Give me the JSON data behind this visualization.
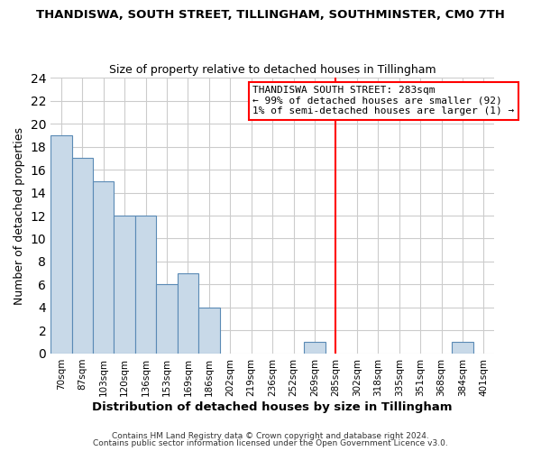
{
  "title": "THANDISWA, SOUTH STREET, TILLINGHAM, SOUTHMINSTER, CM0 7TH",
  "subtitle": "Size of property relative to detached houses in Tillingham",
  "xlabel": "Distribution of detached houses by size in Tillingham",
  "ylabel": "Number of detached properties",
  "bin_labels": [
    "70sqm",
    "87sqm",
    "103sqm",
    "120sqm",
    "136sqm",
    "153sqm",
    "169sqm",
    "186sqm",
    "202sqm",
    "219sqm",
    "236sqm",
    "252sqm",
    "269sqm",
    "285sqm",
    "302sqm",
    "318sqm",
    "335sqm",
    "351sqm",
    "368sqm",
    "384sqm",
    "401sqm"
  ],
  "bar_values": [
    19,
    17,
    15,
    12,
    12,
    6,
    7,
    4,
    0,
    0,
    0,
    0,
    1,
    0,
    0,
    0,
    0,
    0,
    0,
    1,
    0
  ],
  "bar_color": "#c8d9e8",
  "bar_edge_color": "#5a8ab5",
  "grid_color": "#cccccc",
  "vline_color": "red",
  "annotation_line1": "THANDISWA SOUTH STREET: 283sqm",
  "annotation_line2": "← 99% of detached houses are smaller (92)",
  "annotation_line3": "1% of semi-detached houses are larger (1) →",
  "annotation_box_color": "white",
  "annotation_box_edge": "red",
  "ylim": [
    0,
    24
  ],
  "yticks": [
    0,
    2,
    4,
    6,
    8,
    10,
    12,
    14,
    16,
    18,
    20,
    22,
    24
  ],
  "footer1": "Contains HM Land Registry data © Crown copyright and database right 2024.",
  "footer2": "Contains public sector information licensed under the Open Government Licence v3.0."
}
